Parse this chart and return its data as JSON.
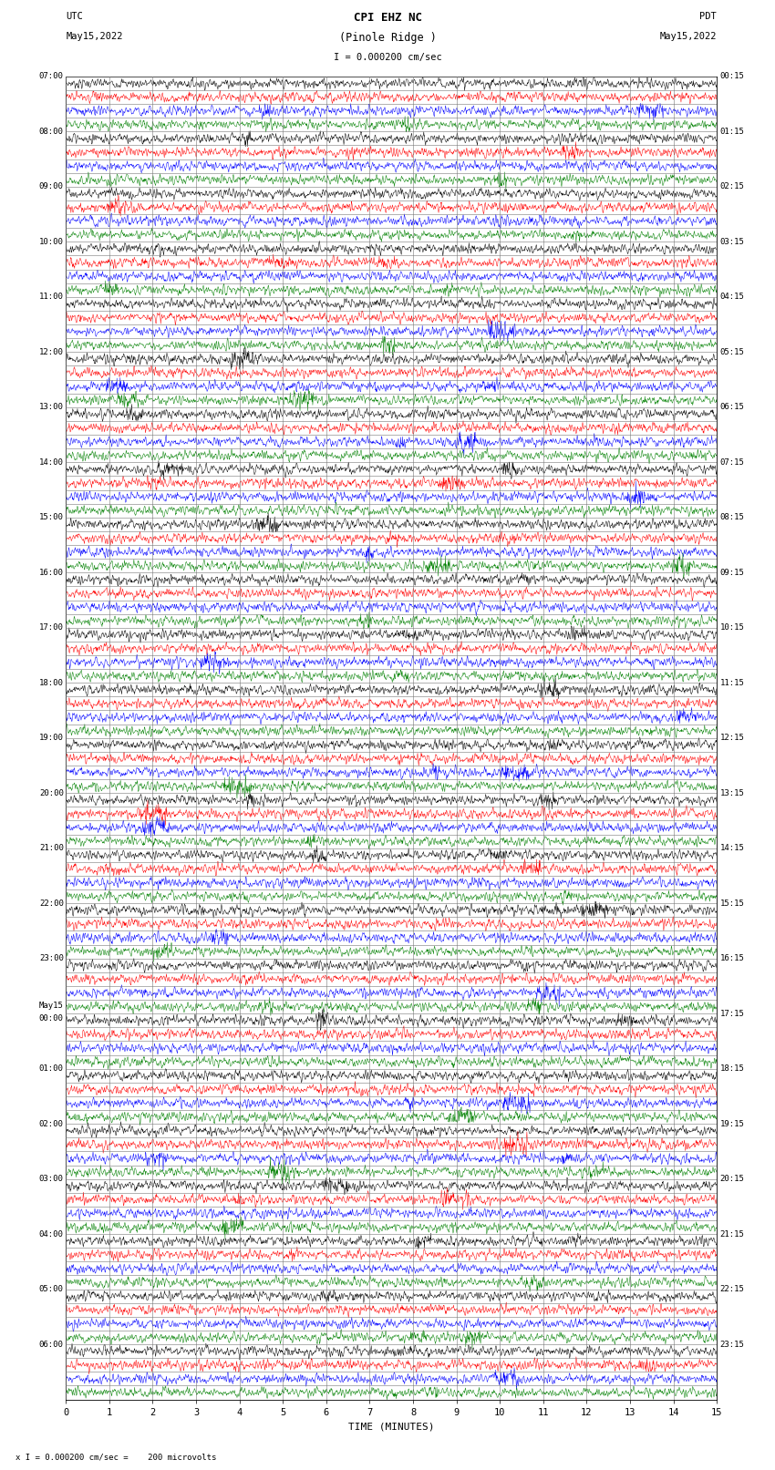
{
  "title_line1": "CPI EHZ NC",
  "title_line2": "(Pinole Ridge )",
  "title_scale": "I = 0.000200 cm/sec",
  "label_utc": "UTC",
  "label_pdt": "PDT",
  "label_date_left": "May15,2022",
  "label_date_right": "May15,2022",
  "xlabel": "TIME (MINUTES)",
  "footer": "x I = 0.000200 cm/sec =    200 microvolts",
  "xlim": [
    0,
    15
  ],
  "xticks": [
    0,
    1,
    2,
    3,
    4,
    5,
    6,
    7,
    8,
    9,
    10,
    11,
    12,
    13,
    14,
    15
  ],
  "colors": [
    "black",
    "red",
    "blue",
    "green"
  ],
  "n_rows": 96,
  "fig_width": 8.5,
  "fig_height": 16.13,
  "dpi": 100,
  "left_times": [
    "07:00",
    "08:00",
    "09:00",
    "10:00",
    "11:00",
    "12:00",
    "13:00",
    "14:00",
    "15:00",
    "16:00",
    "17:00",
    "18:00",
    "19:00",
    "20:00",
    "21:00",
    "22:00",
    "23:00",
    "May15\n00:00",
    "01:00",
    "02:00",
    "03:00",
    "04:00",
    "05:00",
    "06:00"
  ],
  "right_times": [
    "00:15",
    "01:15",
    "02:15",
    "03:15",
    "04:15",
    "05:15",
    "06:15",
    "07:15",
    "08:15",
    "09:15",
    "10:15",
    "11:15",
    "12:15",
    "13:15",
    "14:15",
    "15:15",
    "16:15",
    "17:15",
    "18:15",
    "19:15",
    "20:15",
    "21:15",
    "22:15",
    "23:15"
  ],
  "bg_color": "white",
  "trace_lw": 0.35,
  "grid_color": "#777777",
  "grid_lw": 0.4
}
